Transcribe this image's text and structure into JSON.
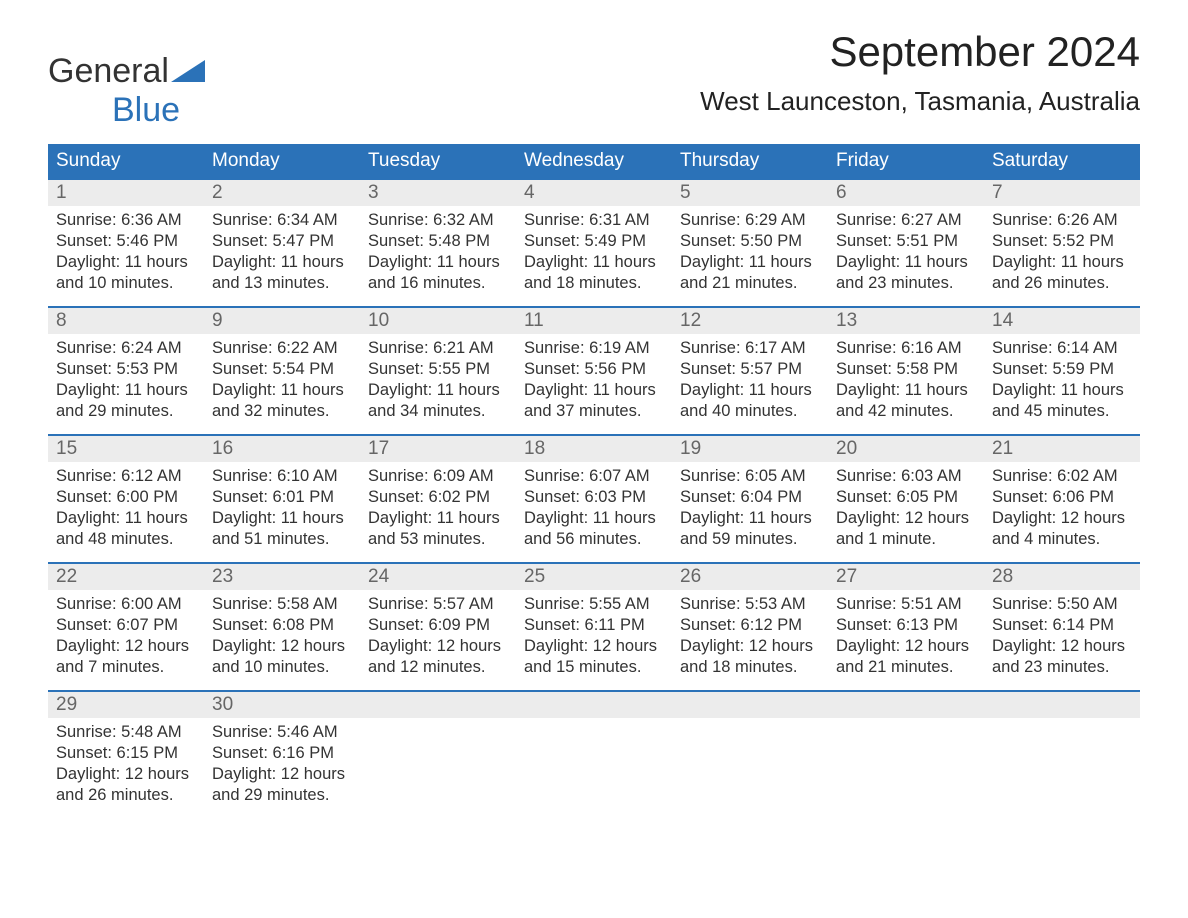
{
  "logo": {
    "text1": "General",
    "text2": "Blue",
    "triangle_color": "#2b72b8"
  },
  "title": "September 2024",
  "location": "West Launceston, Tasmania, Australia",
  "colors": {
    "header_bg": "#2b72b8",
    "header_text": "#ffffff",
    "daynum_bg": "#ececec",
    "daynum_text": "#666666",
    "body_text": "#333333",
    "week_border": "#2b72b8",
    "background": "#ffffff"
  },
  "typography": {
    "title_fontsize": 42,
    "location_fontsize": 26,
    "dow_fontsize": 19,
    "daynum_fontsize": 19,
    "body_fontsize": 16.5,
    "logo_fontsize": 34
  },
  "day_headers": [
    "Sunday",
    "Monday",
    "Tuesday",
    "Wednesday",
    "Thursday",
    "Friday",
    "Saturday"
  ],
  "weeks": [
    [
      {
        "num": "1",
        "sunrise": "6:36 AM",
        "sunset": "5:46 PM",
        "daylight": "11 hours and 10 minutes."
      },
      {
        "num": "2",
        "sunrise": "6:34 AM",
        "sunset": "5:47 PM",
        "daylight": "11 hours and 13 minutes."
      },
      {
        "num": "3",
        "sunrise": "6:32 AM",
        "sunset": "5:48 PM",
        "daylight": "11 hours and 16 minutes."
      },
      {
        "num": "4",
        "sunrise": "6:31 AM",
        "sunset": "5:49 PM",
        "daylight": "11 hours and 18 minutes."
      },
      {
        "num": "5",
        "sunrise": "6:29 AM",
        "sunset": "5:50 PM",
        "daylight": "11 hours and 21 minutes."
      },
      {
        "num": "6",
        "sunrise": "6:27 AM",
        "sunset": "5:51 PM",
        "daylight": "11 hours and 23 minutes."
      },
      {
        "num": "7",
        "sunrise": "6:26 AM",
        "sunset": "5:52 PM",
        "daylight": "11 hours and 26 minutes."
      }
    ],
    [
      {
        "num": "8",
        "sunrise": "6:24 AM",
        "sunset": "5:53 PM",
        "daylight": "11 hours and 29 minutes."
      },
      {
        "num": "9",
        "sunrise": "6:22 AM",
        "sunset": "5:54 PM",
        "daylight": "11 hours and 32 minutes."
      },
      {
        "num": "10",
        "sunrise": "6:21 AM",
        "sunset": "5:55 PM",
        "daylight": "11 hours and 34 minutes."
      },
      {
        "num": "11",
        "sunrise": "6:19 AM",
        "sunset": "5:56 PM",
        "daylight": "11 hours and 37 minutes."
      },
      {
        "num": "12",
        "sunrise": "6:17 AM",
        "sunset": "5:57 PM",
        "daylight": "11 hours and 40 minutes."
      },
      {
        "num": "13",
        "sunrise": "6:16 AM",
        "sunset": "5:58 PM",
        "daylight": "11 hours and 42 minutes."
      },
      {
        "num": "14",
        "sunrise": "6:14 AM",
        "sunset": "5:59 PM",
        "daylight": "11 hours and 45 minutes."
      }
    ],
    [
      {
        "num": "15",
        "sunrise": "6:12 AM",
        "sunset": "6:00 PM",
        "daylight": "11 hours and 48 minutes."
      },
      {
        "num": "16",
        "sunrise": "6:10 AM",
        "sunset": "6:01 PM",
        "daylight": "11 hours and 51 minutes."
      },
      {
        "num": "17",
        "sunrise": "6:09 AM",
        "sunset": "6:02 PM",
        "daylight": "11 hours and 53 minutes."
      },
      {
        "num": "18",
        "sunrise": "6:07 AM",
        "sunset": "6:03 PM",
        "daylight": "11 hours and 56 minutes."
      },
      {
        "num": "19",
        "sunrise": "6:05 AM",
        "sunset": "6:04 PM",
        "daylight": "11 hours and 59 minutes."
      },
      {
        "num": "20",
        "sunrise": "6:03 AM",
        "sunset": "6:05 PM",
        "daylight": "12 hours and 1 minute."
      },
      {
        "num": "21",
        "sunrise": "6:02 AM",
        "sunset": "6:06 PM",
        "daylight": "12 hours and 4 minutes."
      }
    ],
    [
      {
        "num": "22",
        "sunrise": "6:00 AM",
        "sunset": "6:07 PM",
        "daylight": "12 hours and 7 minutes."
      },
      {
        "num": "23",
        "sunrise": "5:58 AM",
        "sunset": "6:08 PM",
        "daylight": "12 hours and 10 minutes."
      },
      {
        "num": "24",
        "sunrise": "5:57 AM",
        "sunset": "6:09 PM",
        "daylight": "12 hours and 12 minutes."
      },
      {
        "num": "25",
        "sunrise": "5:55 AM",
        "sunset": "6:11 PM",
        "daylight": "12 hours and 15 minutes."
      },
      {
        "num": "26",
        "sunrise": "5:53 AM",
        "sunset": "6:12 PM",
        "daylight": "12 hours and 18 minutes."
      },
      {
        "num": "27",
        "sunrise": "5:51 AM",
        "sunset": "6:13 PM",
        "daylight": "12 hours and 21 minutes."
      },
      {
        "num": "28",
        "sunrise": "5:50 AM",
        "sunset": "6:14 PM",
        "daylight": "12 hours and 23 minutes."
      }
    ],
    [
      {
        "num": "29",
        "sunrise": "5:48 AM",
        "sunset": "6:15 PM",
        "daylight": "12 hours and 26 minutes."
      },
      {
        "num": "30",
        "sunrise": "5:46 AM",
        "sunset": "6:16 PM",
        "daylight": "12 hours and 29 minutes."
      },
      null,
      null,
      null,
      null,
      null
    ]
  ],
  "labels": {
    "sunrise": "Sunrise: ",
    "sunset": "Sunset: ",
    "daylight": "Daylight: "
  }
}
